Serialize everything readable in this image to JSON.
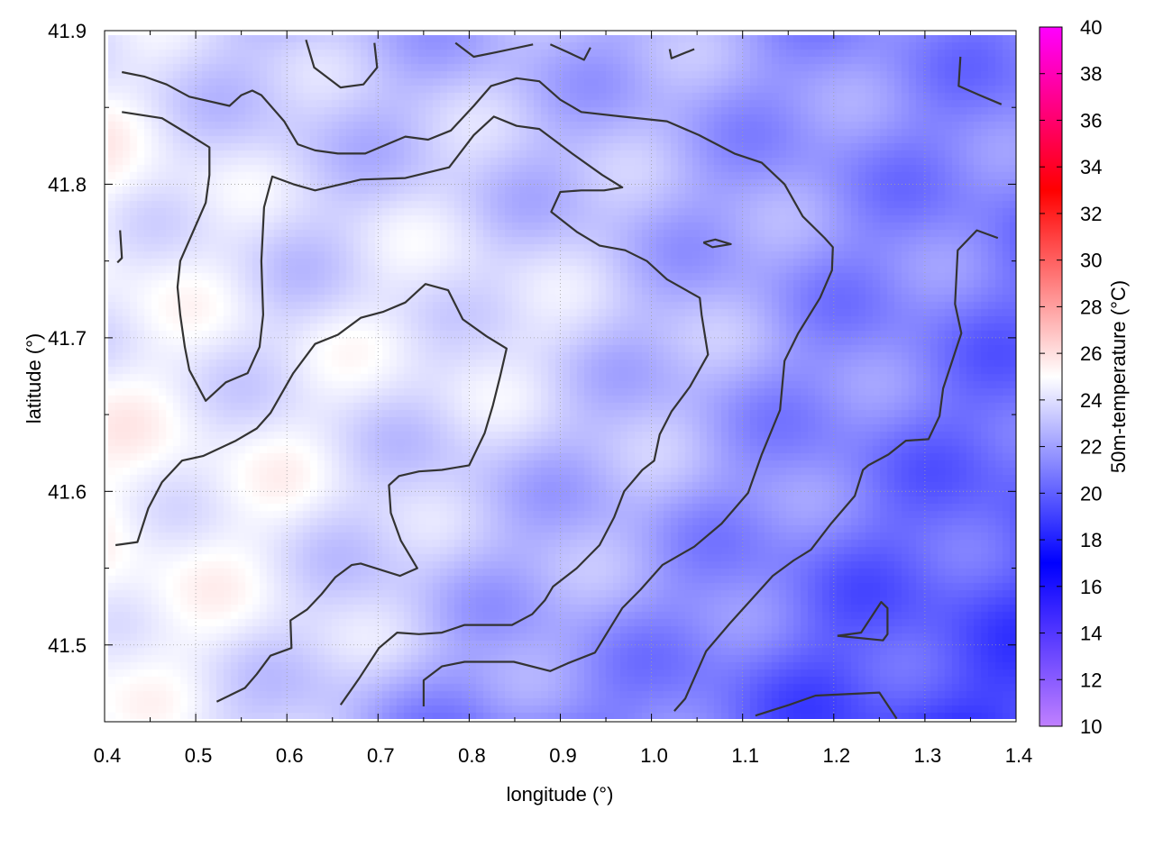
{
  "chart_data": {
    "type": "heatmap",
    "xlabel": "longitude (°)",
    "ylabel": "latitude (°)",
    "colorbar_label": "50m-temperature (°C)",
    "xlim": [
      0.4,
      1.4
    ],
    "ylim": [
      41.45,
      41.9
    ],
    "zlim": [
      10,
      40
    ],
    "grid": true,
    "x_ticks": [
      "0.4",
      "0.5",
      "0.6",
      "0.7",
      "0.8",
      "0.9",
      "1.0",
      "1.1",
      "1.2",
      "1.3",
      "1.4"
    ],
    "y_ticks": [
      "41.5",
      "41.6",
      "41.7",
      "41.8",
      "41.9"
    ],
    "colorbar_ticks": [
      "10",
      "12",
      "14",
      "16",
      "18",
      "20",
      "22",
      "24",
      "26",
      "28",
      "30",
      "32",
      "34",
      "36",
      "38",
      "40"
    ],
    "colormap": [
      {
        "value": 10,
        "color": "#c080ff"
      },
      {
        "value": 17,
        "color": "#0000ff"
      },
      {
        "value": 25,
        "color": "#ffffff"
      },
      {
        "value": 33,
        "color": "#ff0000"
      },
      {
        "value": 40,
        "color": "#ff00ff"
      }
    ],
    "grid_lon": [
      0.4,
      0.6,
      0.8,
      1.0,
      1.2,
      1.4
    ],
    "grid_lat": [
      41.9,
      41.8,
      41.7,
      41.6,
      41.5,
      41.45
    ],
    "temperature": [
      [
        24,
        23,
        22.5,
        22.5,
        21.5,
        21
      ],
      [
        25,
        23.5,
        23.5,
        22.5,
        21.5,
        21
      ],
      [
        24.5,
        24,
        24.5,
        23,
        21.5,
        20.5
      ],
      [
        25,
        24.5,
        23,
        22.5,
        21,
        20
      ],
      [
        25,
        24,
        22.5,
        21.5,
        20,
        19.5
      ],
      [
        24.5,
        23.5,
        21,
        21,
        19.5,
        19
      ]
    ],
    "contour_color": "#333333",
    "contours": [
      [
        [
          0.419,
          41.873
        ],
        [
          0.444,
          41.87
        ],
        [
          0.468,
          41.865
        ],
        [
          0.493,
          41.857
        ],
        [
          0.537,
          41.851
        ],
        [
          0.55,
          41.858
        ],
        [
          0.562,
          41.861
        ],
        [
          0.572,
          41.858
        ],
        [
          0.597,
          41.841
        ],
        [
          0.612,
          41.826
        ],
        [
          0.631,
          41.822
        ],
        [
          0.656,
          41.82
        ],
        [
          0.686,
          41.82
        ],
        [
          0.73,
          41.831
        ],
        [
          0.755,
          41.829
        ],
        [
          0.78,
          41.835
        ],
        [
          0.805,
          41.851
        ],
        [
          0.824,
          41.864
        ],
        [
          0.852,
          41.869
        ],
        [
          0.877,
          41.867
        ],
        [
          0.9,
          41.855
        ],
        [
          0.923,
          41.847
        ],
        [
          0.968,
          41.844
        ],
        [
          1.017,
          41.841
        ],
        [
          1.052,
          41.832
        ],
        [
          1.091,
          41.82
        ],
        [
          1.121,
          41.814
        ],
        [
          1.146,
          41.8
        ],
        [
          1.166,
          41.779
        ],
        [
          1.19,
          41.765
        ],
        [
          1.199,
          41.759
        ],
        [
          1.198,
          41.744
        ],
        [
          1.185,
          41.726
        ],
        [
          1.161,
          41.703
        ],
        [
          1.146,
          41.685
        ],
        [
          1.141,
          41.653
        ],
        [
          1.121,
          41.624
        ],
        [
          1.106,
          41.599
        ],
        [
          1.077,
          41.579
        ],
        [
          1.047,
          41.564
        ],
        [
          1.012,
          41.552
        ],
        [
          0.988,
          41.536
        ],
        [
          0.968,
          41.524
        ],
        [
          0.938,
          41.495
        ],
        [
          0.908,
          41.488
        ],
        [
          0.889,
          41.483
        ],
        [
          0.849,
          41.489
        ],
        [
          0.795,
          41.489
        ],
        [
          0.77,
          41.486
        ],
        [
          0.75,
          41.477
        ],
        [
          0.75,
          41.46
        ]
      ],
      [
        [
          0.419,
          41.847
        ],
        [
          0.463,
          41.843
        ],
        [
          0.488,
          41.834
        ],
        [
          0.515,
          41.824
        ],
        [
          0.515,
          41.806
        ],
        [
          0.511,
          41.788
        ],
        [
          0.483,
          41.75
        ],
        [
          0.48,
          41.733
        ],
        [
          0.483,
          41.715
        ],
        [
          0.488,
          41.694
        ],
        [
          0.493,
          41.679
        ],
        [
          0.511,
          41.659
        ],
        [
          0.533,
          41.671
        ],
        [
          0.557,
          41.677
        ],
        [
          0.57,
          41.694
        ],
        [
          0.574,
          41.715
        ],
        [
          0.572,
          41.75
        ],
        [
          0.575,
          41.785
        ],
        [
          0.584,
          41.805
        ],
        [
          0.607,
          41.8
        ],
        [
          0.631,
          41.796
        ],
        [
          0.681,
          41.803
        ],
        [
          0.73,
          41.804
        ],
        [
          0.778,
          41.811
        ],
        [
          0.805,
          41.832
        ],
        [
          0.827,
          41.844
        ],
        [
          0.852,
          41.838
        ],
        [
          0.877,
          41.836
        ],
        [
          0.913,
          41.82
        ],
        [
          0.946,
          41.806
        ],
        [
          0.968,
          41.798
        ],
        [
          0.948,
          41.796
        ],
        [
          0.923,
          41.796
        ],
        [
          0.9,
          41.795
        ],
        [
          0.89,
          41.782
        ],
        [
          0.918,
          41.769
        ],
        [
          0.943,
          41.76
        ],
        [
          0.971,
          41.757
        ],
        [
          0.995,
          41.75
        ],
        [
          1.017,
          41.738
        ],
        [
          1.053,
          41.726
        ],
        [
          1.055,
          41.715
        ],
        [
          1.062,
          41.689
        ],
        [
          1.042,
          41.668
        ],
        [
          1.022,
          41.652
        ],
        [
          1.009,
          41.637
        ],
        [
          1.003,
          41.62
        ],
        [
          0.99,
          41.614
        ],
        [
          0.97,
          41.6
        ],
        [
          0.959,
          41.583
        ],
        [
          0.943,
          41.565
        ],
        [
          0.918,
          41.55
        ],
        [
          0.892,
          41.538
        ],
        [
          0.883,
          41.529
        ],
        [
          0.869,
          41.52
        ],
        [
          0.847,
          41.513
        ],
        [
          0.795,
          41.513
        ],
        [
          0.77,
          41.508
        ],
        [
          0.745,
          41.507
        ],
        [
          0.721,
          41.508
        ],
        [
          0.701,
          41.498
        ],
        [
          0.679,
          41.478
        ],
        [
          0.659,
          41.461
        ]
      ],
      [
        [
          0.412,
          41.565
        ],
        [
          0.436,
          41.567
        ],
        [
          0.448,
          41.589
        ],
        [
          0.463,
          41.606
        ],
        [
          0.485,
          41.62
        ],
        [
          0.508,
          41.623
        ],
        [
          0.544,
          41.633
        ],
        [
          0.567,
          41.641
        ],
        [
          0.582,
          41.651
        ],
        [
          0.607,
          41.677
        ],
        [
          0.631,
          41.696
        ],
        [
          0.656,
          41.702
        ],
        [
          0.681,
          41.713
        ],
        [
          0.706,
          41.717
        ],
        [
          0.73,
          41.723
        ],
        [
          0.752,
          41.735
        ],
        [
          0.777,
          41.731
        ],
        [
          0.793,
          41.712
        ],
        [
          0.819,
          41.701
        ],
        [
          0.841,
          41.693
        ],
        [
          0.834,
          41.675
        ],
        [
          0.826,
          41.656
        ],
        [
          0.817,
          41.638
        ],
        [
          0.8,
          41.617
        ],
        [
          0.77,
          41.614
        ],
        [
          0.745,
          41.613
        ],
        [
          0.723,
          41.61
        ],
        [
          0.712,
          41.604
        ],
        [
          0.714,
          41.586
        ],
        [
          0.725,
          41.568
        ],
        [
          0.743,
          41.55
        ],
        [
          0.724,
          41.545
        ],
        [
          0.681,
          41.553
        ],
        [
          0.671,
          41.552
        ],
        [
          0.653,
          41.544
        ],
        [
          0.638,
          41.533
        ],
        [
          0.622,
          41.523
        ],
        [
          0.604,
          41.516
        ],
        [
          0.605,
          41.498
        ],
        [
          0.582,
          41.493
        ],
        [
          0.567,
          41.481
        ],
        [
          0.554,
          41.472
        ],
        [
          0.523,
          41.463
        ]
      ],
      [
        [
          1.025,
          41.457
        ],
        [
          1.037,
          41.465
        ],
        [
          1.06,
          41.496
        ],
        [
          1.086,
          41.514
        ],
        [
          1.133,
          41.545
        ],
        [
          1.156,
          41.555
        ],
        [
          1.175,
          41.562
        ],
        [
          1.197,
          41.579
        ],
        [
          1.223,
          41.597
        ],
        [
          1.232,
          41.614
        ],
        [
          1.238,
          41.617
        ],
        [
          1.26,
          41.624
        ],
        [
          1.279,
          41.633
        ],
        [
          1.304,
          41.634
        ],
        [
          1.316,
          41.649
        ],
        [
          1.32,
          41.667
        ],
        [
          1.33,
          41.685
        ],
        [
          1.34,
          41.703
        ],
        [
          1.333,
          41.722
        ],
        [
          1.336,
          41.757
        ],
        [
          1.357,
          41.77
        ],
        [
          1.38,
          41.765
        ]
      ],
      [
        [
          0.621,
          41.894
        ],
        [
          0.63,
          41.876
        ],
        [
          0.659,
          41.863
        ],
        [
          0.684,
          41.865
        ],
        [
          0.699,
          41.876
        ],
        [
          0.696,
          41.892
        ]
      ],
      [
        [
          0.785,
          41.892
        ],
        [
          0.805,
          41.883
        ],
        [
          0.83,
          41.886
        ],
        [
          0.87,
          41.891
        ]
      ],
      [
        [
          0.889,
          41.891
        ],
        [
          0.908,
          41.886
        ],
        [
          0.926,
          41.881
        ],
        [
          0.933,
          41.889
        ]
      ],
      [
        [
          1.02,
          41.888
        ],
        [
          1.022,
          41.882
        ],
        [
          1.047,
          41.888
        ]
      ],
      [
        [
          1.339,
          41.883
        ],
        [
          1.337,
          41.864
        ],
        [
          1.36,
          41.858
        ],
        [
          1.384,
          41.852
        ]
      ],
      [
        [
          1.057,
          41.762
        ],
        [
          1.07,
          41.764
        ],
        [
          1.087,
          41.761
        ],
        [
          1.067,
          41.759
        ],
        [
          1.057,
          41.762
        ]
      ],
      [
        [
          0.417,
          41.77
        ],
        [
          0.419,
          41.752
        ],
        [
          0.414,
          41.749
        ]
      ],
      [
        [
          1.114,
          41.454
        ],
        [
          1.151,
          41.461
        ],
        [
          1.18,
          41.467
        ],
        [
          1.25,
          41.469
        ],
        [
          1.269,
          41.452
        ]
      ],
      [
        [
          1.204,
          41.506
        ],
        [
          1.23,
          41.508
        ],
        [
          1.252,
          41.528
        ],
        [
          1.259,
          41.524
        ],
        [
          1.259,
          41.507
        ],
        [
          1.254,
          41.503
        ],
        [
          1.204,
          41.506
        ]
      ]
    ]
  }
}
